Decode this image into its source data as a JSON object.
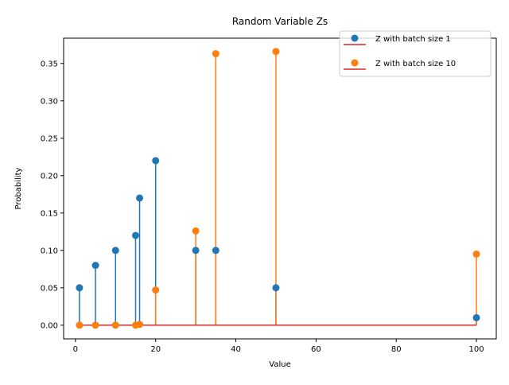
{
  "chart_data": {
    "type": "stem",
    "title": "Random Variable Zs",
    "xlabel": "Value",
    "ylabel": "Probability",
    "xlim": [
      -2.95,
      104.95
    ],
    "ylim": [
      -0.0183,
      0.3838
    ],
    "x_ticks": [
      0,
      20,
      40,
      60,
      80,
      100
    ],
    "x_tick_labels": [
      "0",
      "20",
      "40",
      "60",
      "80",
      "100"
    ],
    "y_ticks": [
      0.0,
      0.05,
      0.1,
      0.15,
      0.2,
      0.25,
      0.3,
      0.35
    ],
    "y_tick_labels": [
      "0.00",
      "0.05",
      "0.10",
      "0.15",
      "0.20",
      "0.25",
      "0.30",
      "0.35"
    ],
    "grid": false,
    "legend_position": "top-right",
    "baseline": {
      "y": 0.0,
      "color": "#d62728",
      "x_range": [
        1,
        100
      ]
    },
    "series": [
      {
        "name": "Z with batch size 1",
        "color": "#1f77b4",
        "x": [
          1,
          5,
          10,
          15,
          16,
          20,
          30,
          35,
          50,
          100
        ],
        "y": [
          0.05,
          0.08,
          0.1,
          0.12,
          0.17,
          0.22,
          0.1,
          0.1,
          0.05,
          0.01
        ]
      },
      {
        "name": "Z with batch size 10",
        "color": "#ff7f0e",
        "x": [
          1,
          5,
          10,
          15,
          16,
          20,
          30,
          35,
          50,
          100
        ],
        "y": [
          0.0,
          0.0,
          0.0,
          0.0,
          0.001,
          0.047,
          0.126,
          0.363,
          0.366,
          0.095
        ]
      }
    ]
  }
}
